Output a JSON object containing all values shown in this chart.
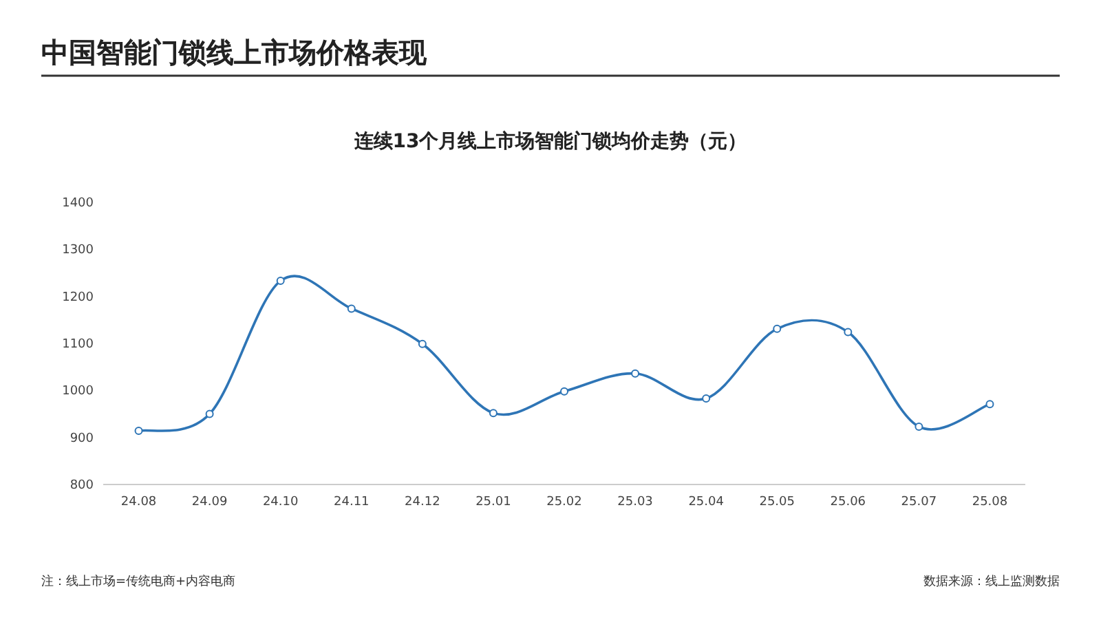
{
  "chart_data": {
    "type": "line",
    "title": "中国智能门锁线上市场价格表现",
    "subtitle": "连续13个月线上市场智能门锁均价走势（元）",
    "categories": [
      "24.08",
      "24.09",
      "24.10",
      "24.11",
      "24.12",
      "25.01",
      "25.02",
      "25.03",
      "25.04",
      "25.05",
      "25.06",
      "25.07",
      "25.08"
    ],
    "series": [
      {
        "color": "#2e75b6",
        "values": [
          914,
          950,
          1233,
          1174,
          1099,
          952,
          998,
          1036,
          983,
          1131,
          1124,
          923,
          971
        ]
      }
    ],
    "ylim": [
      800,
      1400
    ],
    "yticks": [
      800,
      900,
      1000,
      1100,
      1200,
      1300,
      1400
    ],
    "grid": false,
    "marker": "circle",
    "line_style": "solid",
    "annotations": [
      "注：线上市场=传统电商+内容电商",
      "数据来源：线上监测数据"
    ]
  }
}
